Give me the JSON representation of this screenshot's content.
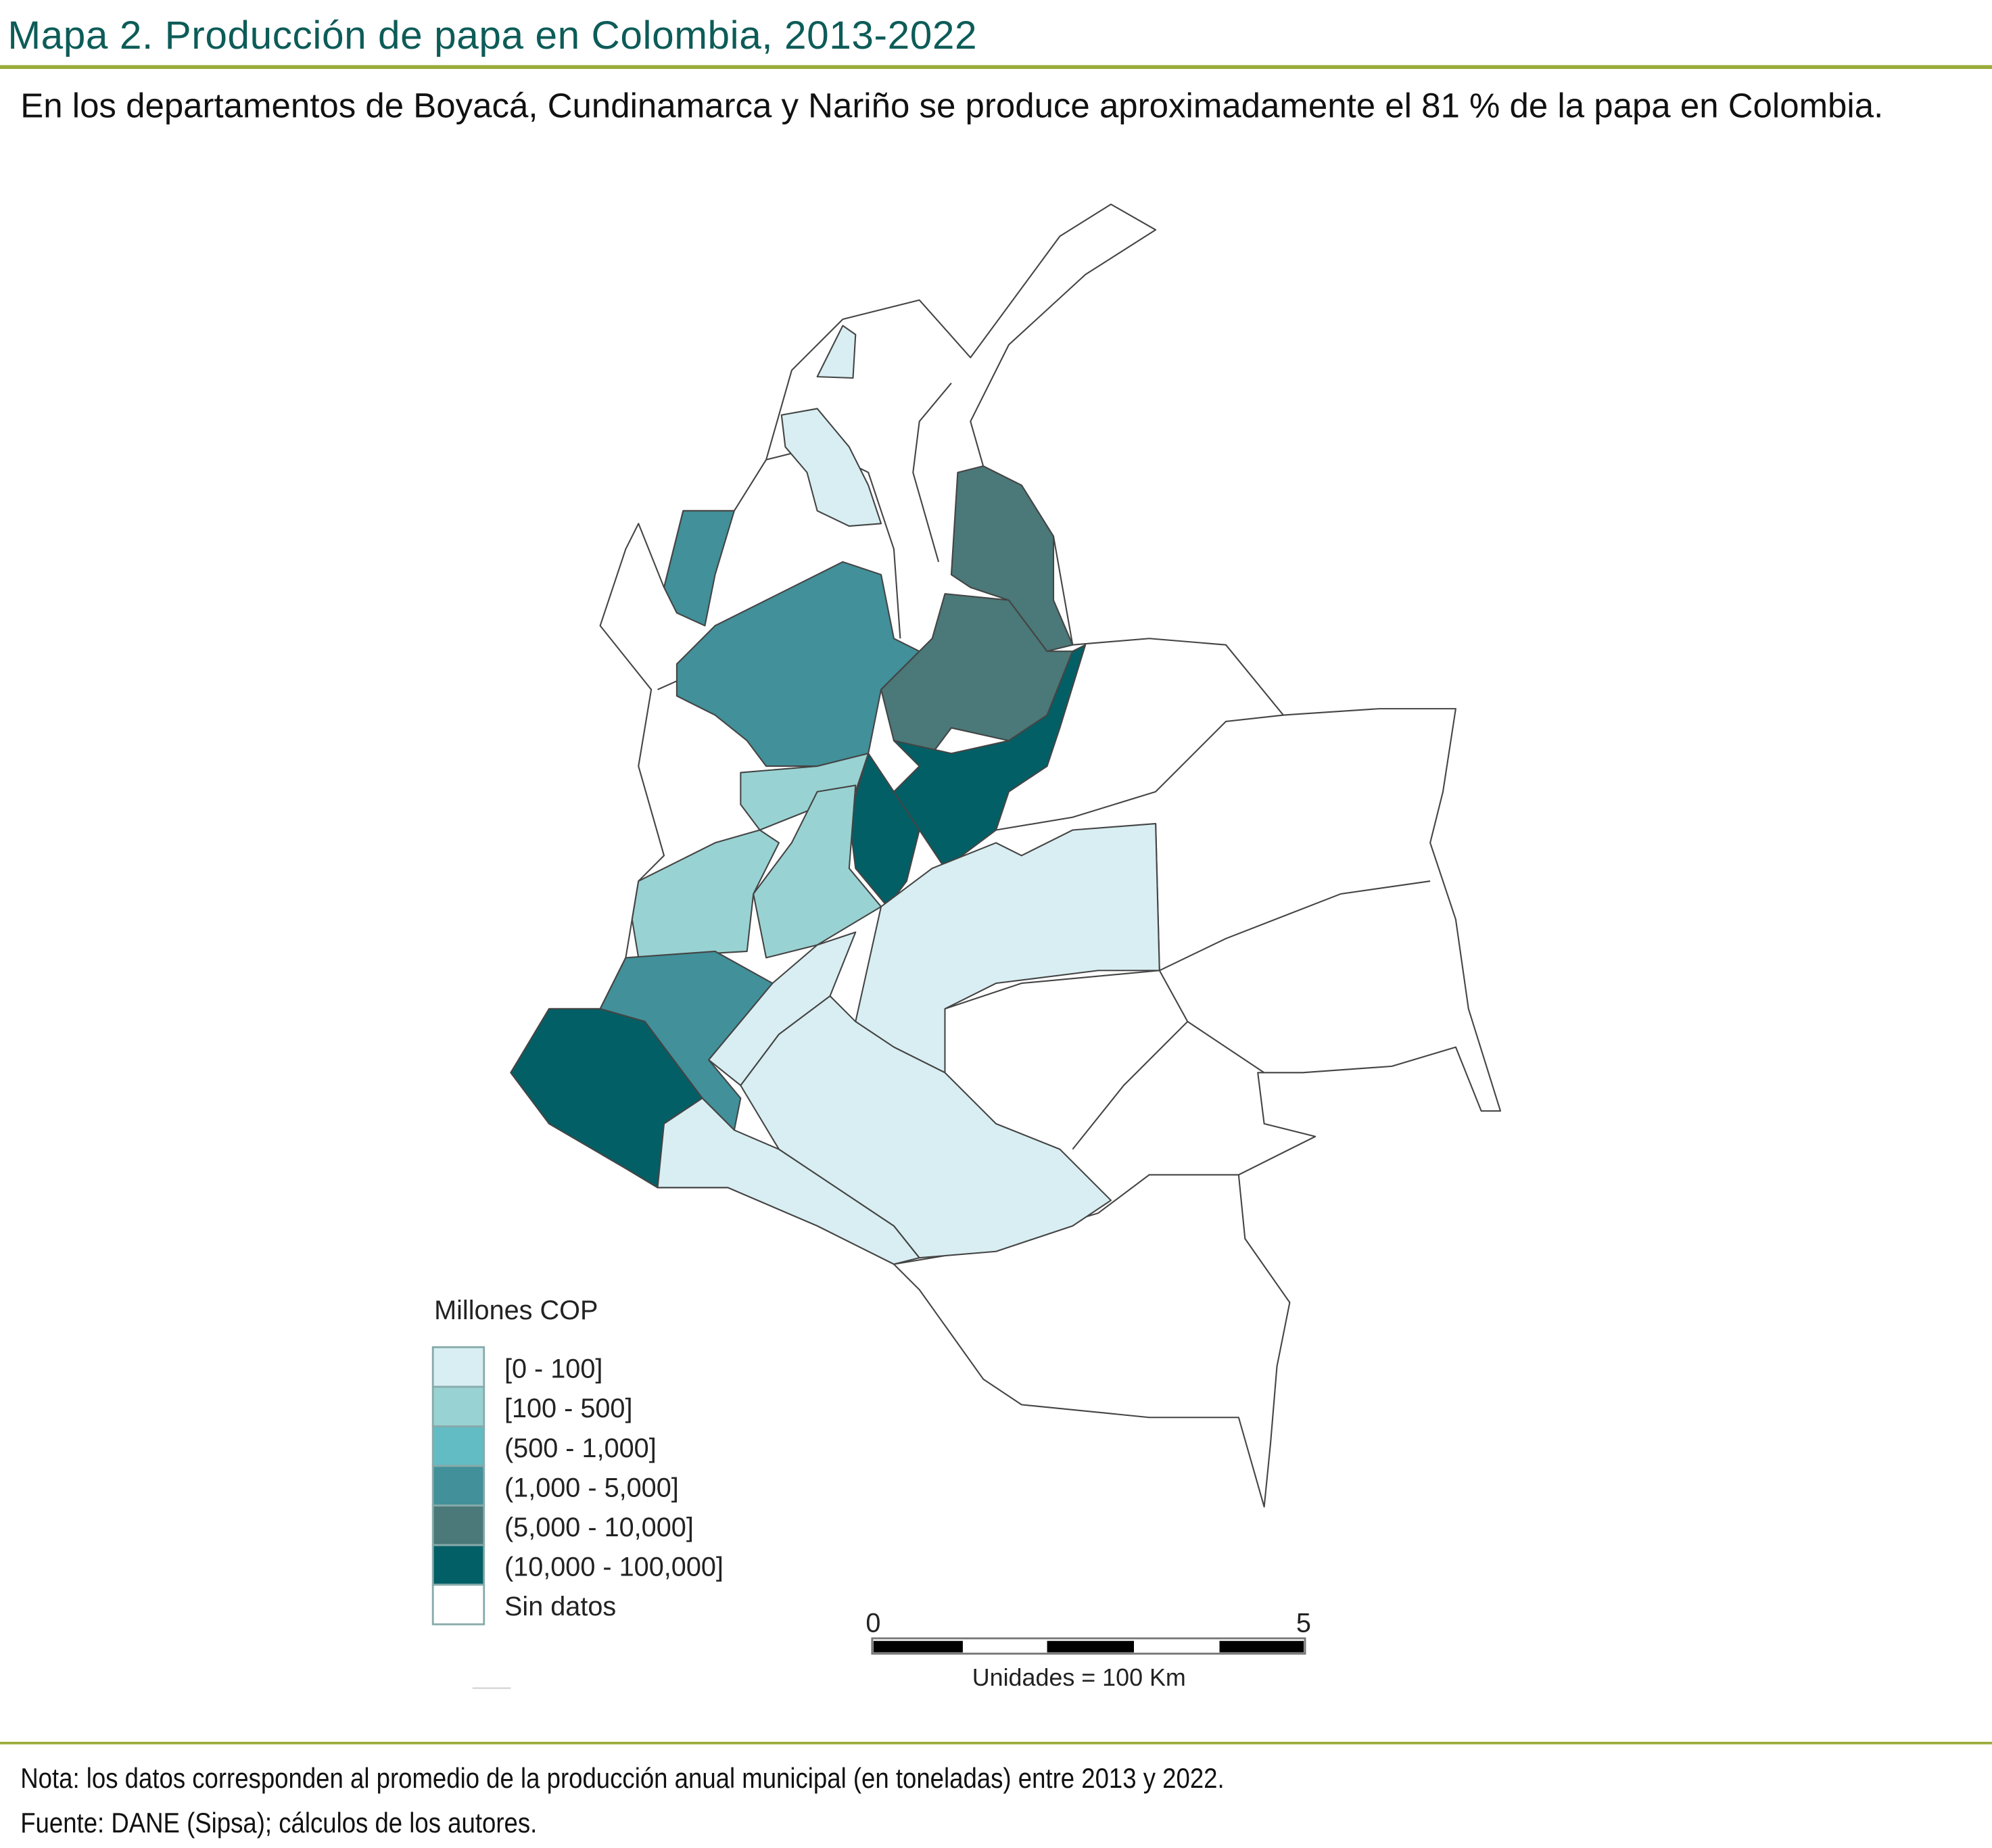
{
  "header": {
    "title": "Mapa 2. Producción de papa en Colombia, 2013-2022",
    "subtitle": "En los departamentos de Boyacá, Cundinamarca y Nariño se produce aproximadamente el 81 % de la papa en Colombia."
  },
  "legend": {
    "title": "Millones COP",
    "items": [
      {
        "label": "[0 - 100]",
        "color": "#d8eef2"
      },
      {
        "label": "[100 - 500]",
        "color": "#99d2d2"
      },
      {
        "label": "(500 - 1,000]",
        "color": "#62bcc3"
      },
      {
        "label": "(1,000 - 5,000]",
        "color": "#41909a"
      },
      {
        "label": "(5,000 - 10,000]",
        "color": "#4b7878"
      },
      {
        "label": "(10,000 - 100,000]",
        "color": "#035f66"
      },
      {
        "label": "Sin datos",
        "color": "#ffffff"
      }
    ]
  },
  "scale_bar": {
    "start_label": "0",
    "end_label": "5",
    "units_label": "Unidades = 100 Km"
  },
  "footer": {
    "note": "Nota: los datos corresponden al promedio de la producción anual municipal (en toneladas) entre 2013 y 2022.",
    "source": "Fuente: DANE (Sipsa); cálculos de los autores."
  },
  "colors": {
    "title": "#0d5c58",
    "rule": "#9aab3a"
  }
}
